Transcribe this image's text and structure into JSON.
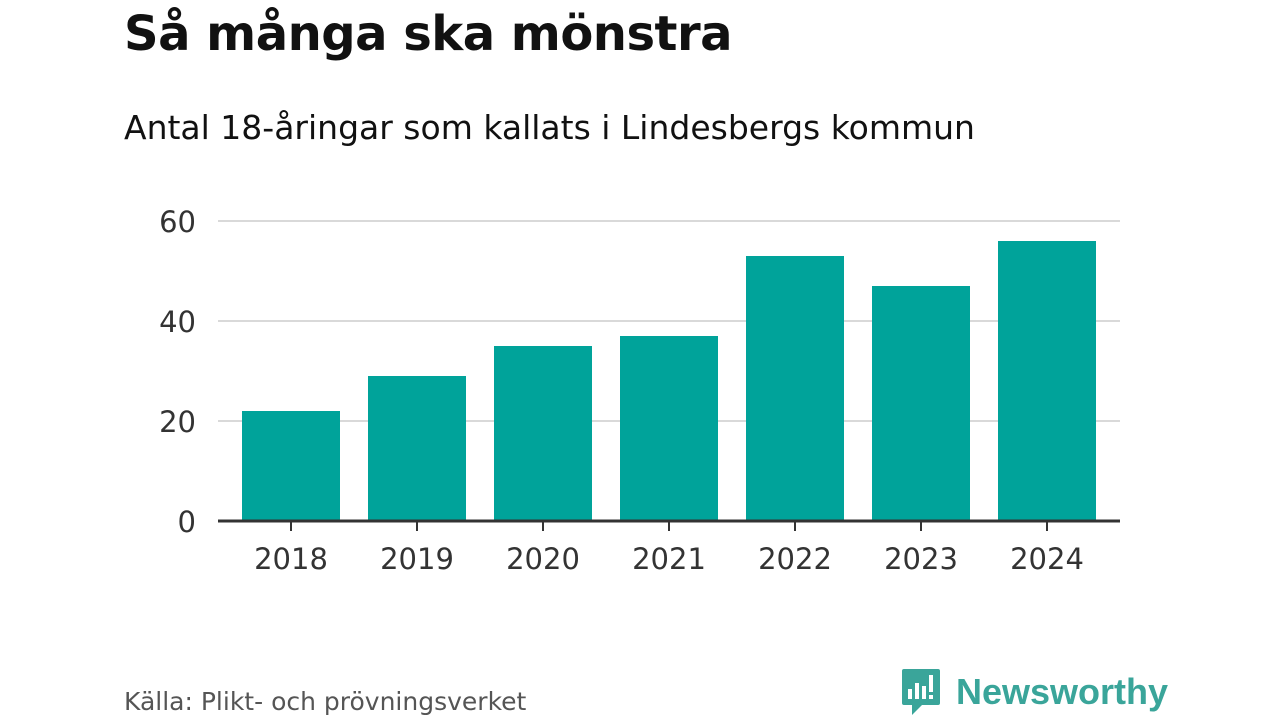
{
  "title": "Så många ska mönstra",
  "subtitle": "Antal 18-åringar som kallats i Lindesbergs kommun",
  "source": "Källa: Plikt- och prövningsverket",
  "brand": {
    "name": "Newsworthy",
    "icon": "bar-chart-speech-bubble-icon",
    "color": "#3aa59a"
  },
  "colors": {
    "bar": "#00a39a",
    "grid": "#d9d9d9",
    "axis": "#333333"
  },
  "chart_data": {
    "type": "bar",
    "title": "Så många ska mönstra",
    "subtitle": "Antal 18-åringar som kallats i Lindesbergs kommun",
    "categories": [
      "2018",
      "2019",
      "2020",
      "2021",
      "2022",
      "2023",
      "2024"
    ],
    "values": [
      22,
      29,
      35,
      37,
      53,
      47,
      56
    ],
    "xlabel": "",
    "ylabel": "",
    "ylim": [
      0,
      60
    ],
    "yticks": [
      0,
      20,
      40,
      60
    ],
    "grid": true,
    "legend": "none"
  }
}
